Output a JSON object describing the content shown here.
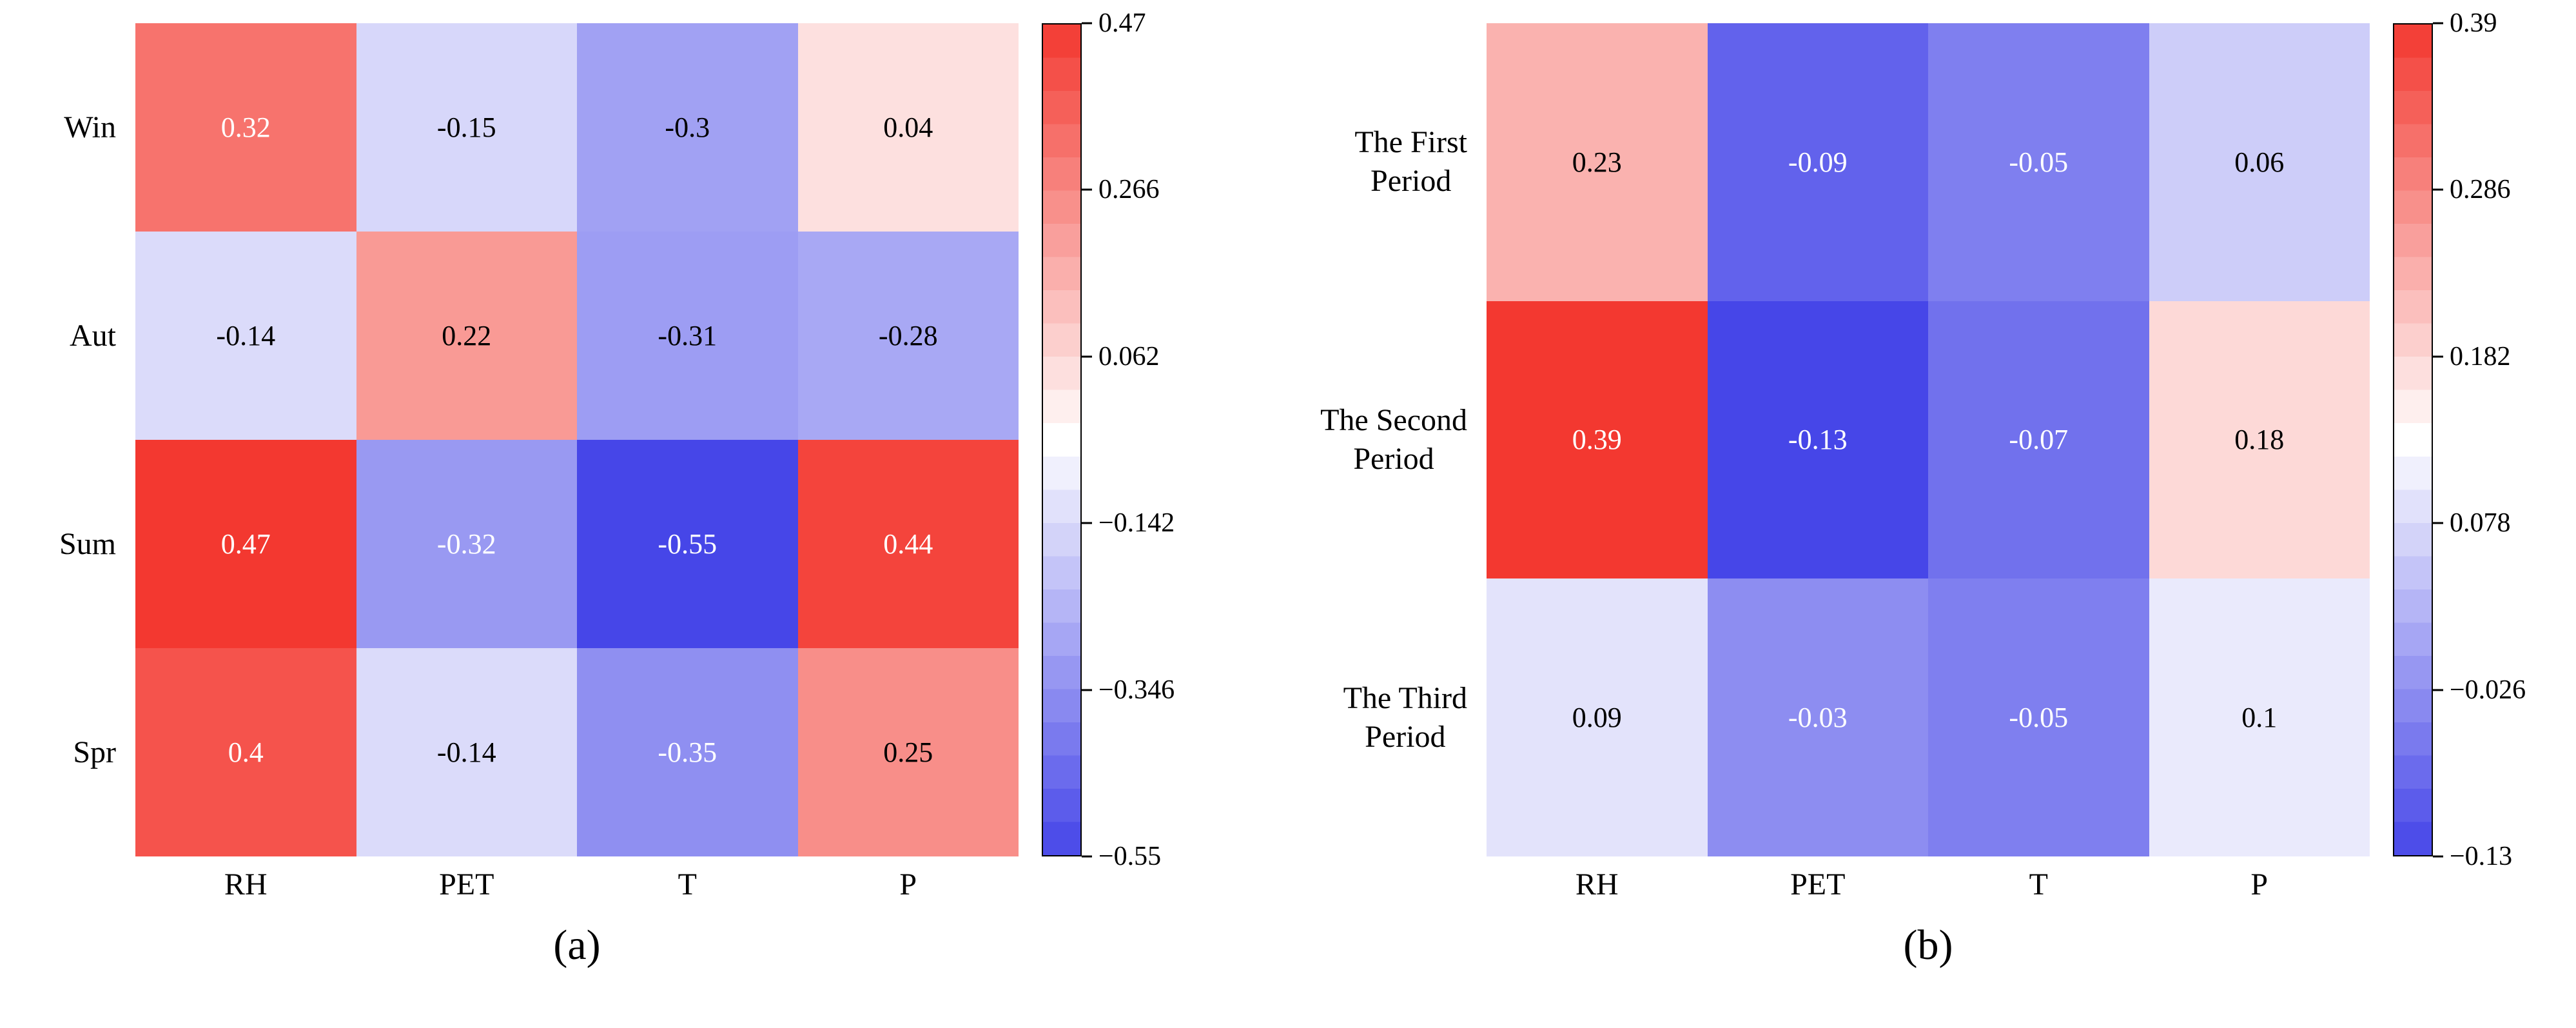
{
  "chart_data": [
    {
      "type": "heatmap",
      "caption": "(a)",
      "rows": [
        "Win",
        "Aut",
        "Sum",
        "Spr"
      ],
      "columns": [
        "RH",
        "PET",
        "T",
        "P"
      ],
      "values": [
        [
          0.32,
          -0.15,
          -0.3,
          0.04
        ],
        [
          -0.14,
          0.22,
          -0.31,
          -0.28
        ],
        [
          0.47,
          -0.32,
          -0.55,
          0.44
        ],
        [
          0.4,
          -0.14,
          -0.35,
          0.25
        ]
      ],
      "vmin": -0.55,
      "vmax": 0.47,
      "colorbar_ticks": [
        "0.47",
        "0.266",
        "0.062",
        "−0.142",
        "−0.346",
        "−0.55"
      ],
      "colormap": "blue-white-red",
      "legend_position": "right-colorbar",
      "colors": {
        "positive_max": "#f33830",
        "midpoint": "#ffffff",
        "negative_max": "#4646e8"
      }
    },
    {
      "type": "heatmap",
      "caption": "(b)",
      "rows": [
        "The First\nPeriod",
        "The Second\nPeriod",
        "The Third\nPeriod"
      ],
      "columns": [
        "RH",
        "PET",
        "T",
        "P"
      ],
      "values": [
        [
          0.23,
          -0.09,
          -0.05,
          0.06
        ],
        [
          0.39,
          -0.13,
          -0.07,
          0.18
        ],
        [
          0.09,
          -0.03,
          -0.05,
          0.1
        ]
      ],
      "vmin": -0.13,
      "vmax": 0.39,
      "colorbar_ticks": [
        "0.39",
        "0.286",
        "0.182",
        "0.078",
        "−0.026",
        "−0.13"
      ],
      "colormap": "blue-white-red",
      "legend_position": "right-colorbar",
      "colors": {
        "positive_max": "#f33830",
        "midpoint": "#ffffff",
        "negative_max": "#4646e8"
      }
    }
  ]
}
